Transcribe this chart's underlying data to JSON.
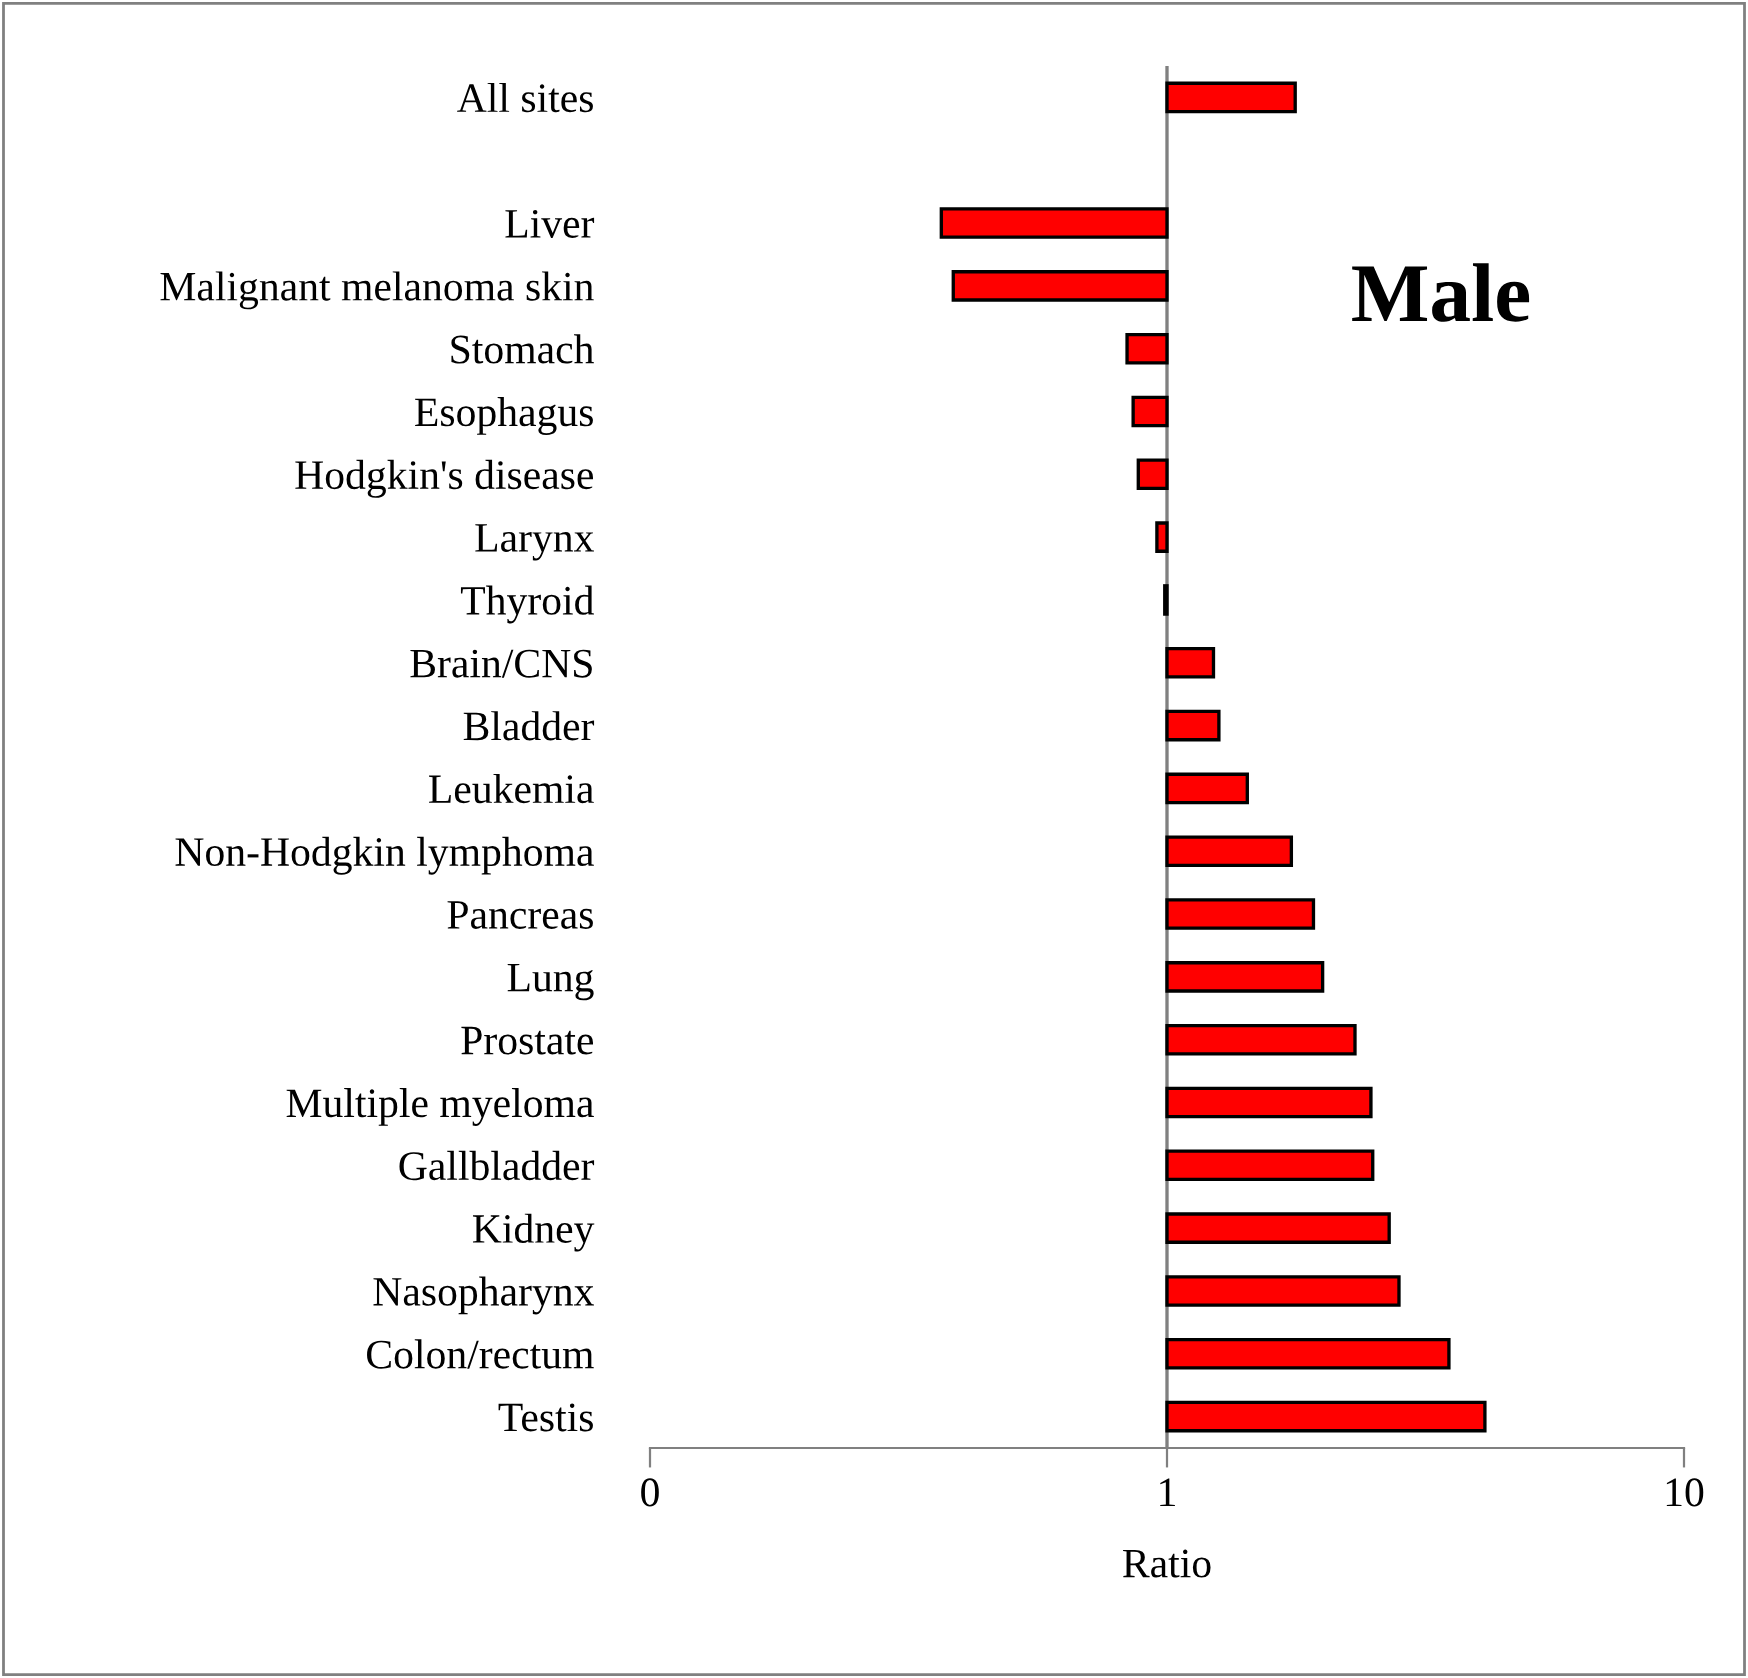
{
  "chart_data": {
    "type": "bar",
    "orientation": "horizontal",
    "log": "x",
    "xlabel": "Ratio",
    "categories": [
      "All sites",
      null,
      "Liver",
      "Malignant melanoma skin",
      "Stomach",
      "Esophagus",
      "Hodgkin's disease",
      "Larynx",
      "Thyroid",
      "Brain/CNS",
      "Bladder",
      "Leukemia",
      "Non-Hodgkin lymphoma",
      "Pancreas",
      "Lung",
      "Prostate",
      "Multiple myeloma",
      "Gallbladder",
      "Kidney",
      "Nasopharynx",
      "Colon/rectum",
      "Testis"
    ],
    "values": [
      0.77,
      null,
      -0.634,
      -0.614,
      -0.163,
      -0.14,
      -0.12,
      -0.044,
      -0.01,
      0.23,
      0.26,
      0.43,
      0.74,
      0.92,
      1.0,
      1.31,
      1.48,
      1.5,
      1.69,
      1.81,
      2.51,
      3.12
    ],
    "base": [
      1,
      null,
      1,
      1,
      1,
      1,
      1,
      1,
      1,
      1,
      1,
      1,
      1,
      1,
      1,
      1,
      1,
      1,
      1,
      1,
      1,
      1
    ],
    "color": "#ff0000",
    "xlim": [
      0.1,
      10
    ],
    "xticks": [
      {
        "value": 0.1,
        "label": "0"
      },
      1,
      10
    ],
    "ref_lines": [
      {
        "axis": "x",
        "value": 1,
        "color": "#808080"
      }
    ],
    "annotations": [
      {
        "text": "Male"
      }
    ],
    "grid": false,
    "legend": false
  }
}
